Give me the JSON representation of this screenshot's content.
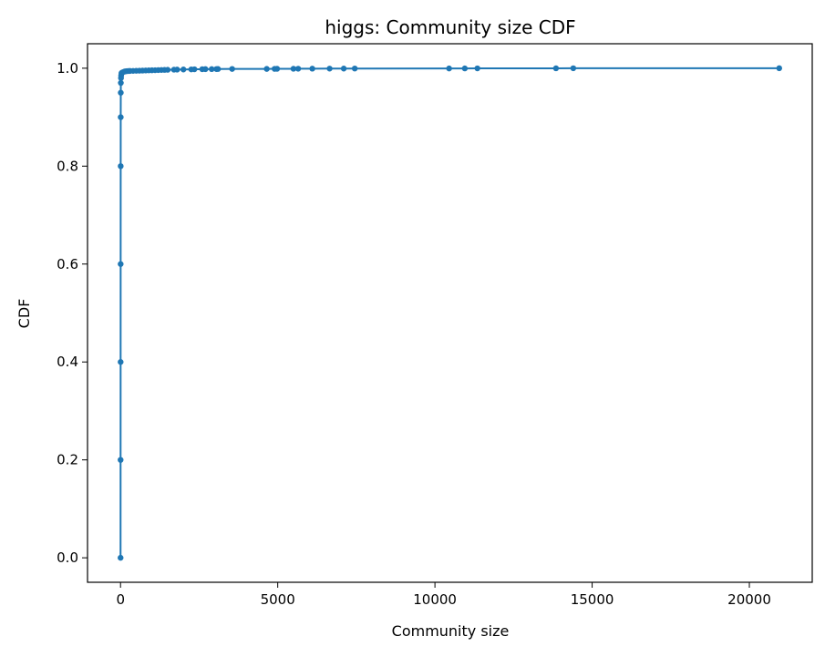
{
  "chart_data": {
    "type": "line",
    "title": "higgs: Community size CDF",
    "xlabel": "Community size",
    "ylabel": "CDF",
    "xlim": [
      -1050,
      22000
    ],
    "ylim": [
      -0.05,
      1.05
    ],
    "xticks": [
      0,
      5000,
      10000,
      15000,
      20000
    ],
    "xtick_labels": [
      "0",
      "5000",
      "10000",
      "15000",
      "20000"
    ],
    "yticks": [
      0.0,
      0.2,
      0.4,
      0.6,
      0.8,
      1.0
    ],
    "ytick_labels": [
      "0.0",
      "0.2",
      "0.4",
      "0.6",
      "0.8",
      "1.0"
    ],
    "grid": false,
    "legend": "none",
    "series": [
      {
        "color": "#1f77b4",
        "marker": "circle",
        "x": [
          1,
          2,
          3,
          4,
          5,
          6,
          8,
          10,
          15,
          20,
          30,
          50,
          80,
          120,
          150,
          200,
          250,
          300,
          400,
          500,
          600,
          700,
          800,
          900,
          1000,
          1100,
          1200,
          1300,
          1400,
          1500,
          1700,
          1800,
          2000,
          2250,
          2350,
          2600,
          2700,
          2900,
          3050,
          3100,
          3550,
          4650,
          4900,
          4980,
          5500,
          5650,
          6100,
          6650,
          7100,
          7450,
          10450,
          10950,
          11350,
          13850,
          14400,
          20950
        ],
        "y": [
          0.0,
          0.2,
          0.4,
          0.6,
          0.8,
          0.9,
          0.95,
          0.97,
          0.98,
          0.985,
          0.99,
          0.991,
          0.992,
          0.993,
          0.9935,
          0.994,
          0.9942,
          0.9944,
          0.9946,
          0.9948,
          0.995,
          0.9952,
          0.9954,
          0.9956,
          0.9958,
          0.996,
          0.9962,
          0.9964,
          0.9966,
          0.9968,
          0.997,
          0.9972,
          0.9974,
          0.9976,
          0.9978,
          0.998,
          0.9981,
          0.9982,
          0.9983,
          0.9984,
          0.9985,
          0.9986,
          0.9987,
          0.9988,
          0.9989,
          0.999,
          0.9991,
          0.9992,
          0.9993,
          0.9994,
          0.9995,
          0.9996,
          0.9997,
          0.9998,
          0.9999,
          1.0
        ]
      }
    ]
  }
}
